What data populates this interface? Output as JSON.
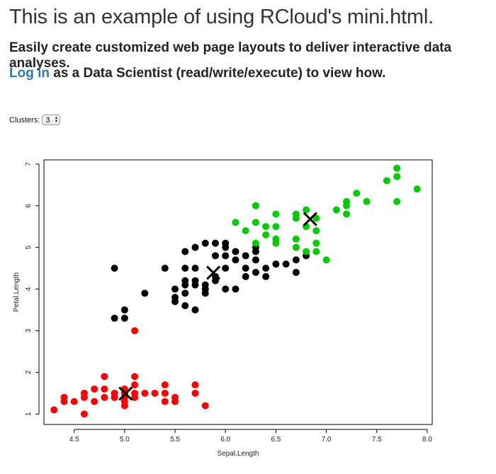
{
  "header": {
    "title": "This is an example of using RCloud's mini.html.",
    "subtitle": "Easily create customized web page layouts to deliver interactive data analyses.",
    "login_link": "Log in",
    "login_rest": " as a Data Scientist (read/write/execute) to view how."
  },
  "control": {
    "label": "Clusters:",
    "selected": "3"
  },
  "chart_data": {
    "type": "scatter",
    "xlabel": "Sepal.Length",
    "ylabel": "Petal.Length",
    "xlim": [
      4.2,
      8.05
    ],
    "ylim": [
      0.75,
      7.1
    ],
    "x_ticks": [
      "4.5",
      "5.0",
      "5.5",
      "6.0",
      "6.5",
      "7.0",
      "7.5",
      "8.0"
    ],
    "y_ticks": [
      "1",
      "2",
      "3",
      "4",
      "5",
      "6",
      "7"
    ],
    "colors": {
      "red": "#ff0000",
      "black": "#000000",
      "green": "#00cc00"
    },
    "series": [
      {
        "color": "#ff0000",
        "points": [
          [
            4.3,
            1.1
          ],
          [
            4.4,
            1.3
          ],
          [
            4.4,
            1.4
          ],
          [
            4.5,
            1.3
          ],
          [
            4.6,
            1.5
          ],
          [
            4.6,
            1.4
          ],
          [
            4.6,
            1.0
          ],
          [
            4.7,
            1.3
          ],
          [
            4.7,
            1.6
          ],
          [
            4.8,
            1.9
          ],
          [
            4.8,
            1.6
          ],
          [
            4.8,
            1.4
          ],
          [
            4.9,
            1.5
          ],
          [
            4.9,
            1.4
          ],
          [
            5.0,
            1.6
          ],
          [
            5.0,
            1.5
          ],
          [
            5.0,
            1.4
          ],
          [
            5.0,
            1.2
          ],
          [
            5.1,
            1.9
          ],
          [
            5.1,
            1.7
          ],
          [
            5.1,
            1.5
          ],
          [
            5.1,
            1.4
          ],
          [
            5.1,
            3.0
          ],
          [
            5.2,
            1.5
          ],
          [
            5.3,
            1.5
          ],
          [
            5.4,
            1.7
          ],
          [
            5.4,
            1.5
          ],
          [
            5.4,
            1.3
          ],
          [
            5.5,
            1.4
          ],
          [
            5.5,
            1.3
          ],
          [
            5.7,
            1.7
          ],
          [
            5.7,
            1.5
          ],
          [
            5.8,
            1.2
          ],
          [
            4.9,
            1.4
          ],
          [
            5.0,
            1.3
          ]
        ]
      },
      {
        "color": "#000000",
        "points": [
          [
            4.9,
            4.5
          ],
          [
            4.9,
            3.3
          ],
          [
            5.0,
            3.5
          ],
          [
            5.0,
            3.3
          ],
          [
            5.2,
            3.9
          ],
          [
            5.4,
            4.5
          ],
          [
            5.5,
            4.0
          ],
          [
            5.5,
            3.8
          ],
          [
            5.5,
            3.7
          ],
          [
            5.6,
            4.9
          ],
          [
            5.6,
            4.5
          ],
          [
            5.6,
            4.2
          ],
          [
            5.6,
            4.1
          ],
          [
            5.6,
            3.9
          ],
          [
            5.6,
            3.6
          ],
          [
            5.7,
            5.0
          ],
          [
            5.7,
            4.5
          ],
          [
            5.7,
            4.2
          ],
          [
            5.7,
            4.1
          ],
          [
            5.7,
            3.5
          ],
          [
            5.8,
            5.1
          ],
          [
            5.8,
            4.1
          ],
          [
            5.8,
            4.0
          ],
          [
            5.8,
            3.9
          ],
          [
            5.9,
            5.1
          ],
          [
            5.9,
            4.8
          ],
          [
            5.9,
            4.2
          ],
          [
            6.0,
            5.1
          ],
          [
            6.0,
            5.0
          ],
          [
            6.0,
            4.5
          ],
          [
            6.0,
            4.0
          ],
          [
            6.1,
            4.9
          ],
          [
            6.1,
            4.7
          ],
          [
            6.1,
            4.0
          ],
          [
            6.2,
            4.8
          ],
          [
            6.2,
            4.5
          ],
          [
            6.2,
            4.3
          ],
          [
            6.3,
            5.0
          ],
          [
            6.3,
            4.9
          ],
          [
            6.3,
            4.4
          ],
          [
            6.4,
            4.5
          ],
          [
            6.4,
            4.3
          ],
          [
            6.5,
            4.6
          ],
          [
            6.6,
            4.6
          ],
          [
            6.7,
            4.4
          ],
          [
            6.7,
            4.7
          ],
          [
            6.8,
            4.8
          ],
          [
            6.3,
            4.7
          ],
          [
            6.0,
            4.8
          ],
          [
            5.9,
            4.3
          ]
        ]
      },
      {
        "color": "#00cc00",
        "points": [
          [
            6.1,
            5.6
          ],
          [
            6.2,
            5.4
          ],
          [
            6.3,
            6.0
          ],
          [
            6.3,
            5.6
          ],
          [
            6.3,
            5.1
          ],
          [
            6.4,
            5.5
          ],
          [
            6.4,
            5.3
          ],
          [
            6.5,
            5.8
          ],
          [
            6.5,
            5.5
          ],
          [
            6.5,
            5.2
          ],
          [
            6.5,
            5.1
          ],
          [
            6.7,
            5.8
          ],
          [
            6.7,
            5.7
          ],
          [
            6.7,
            5.2
          ],
          [
            6.7,
            5.0
          ],
          [
            6.8,
            5.9
          ],
          [
            6.8,
            5.5
          ],
          [
            6.9,
            5.7
          ],
          [
            6.9,
            5.4
          ],
          [
            6.9,
            5.1
          ],
          [
            6.9,
            4.9
          ],
          [
            7.0,
            4.7
          ],
          [
            7.1,
            5.9
          ],
          [
            7.2,
            6.1
          ],
          [
            7.2,
            6.0
          ],
          [
            7.2,
            5.8
          ],
          [
            7.3,
            6.3
          ],
          [
            7.4,
            6.1
          ],
          [
            7.6,
            6.6
          ],
          [
            7.7,
            6.9
          ],
          [
            7.7,
            6.7
          ],
          [
            7.7,
            6.1
          ],
          [
            7.9,
            6.4
          ],
          [
            6.8,
            4.9
          ]
        ]
      }
    ],
    "centers": [
      [
        5.01,
        1.49
      ],
      [
        5.88,
        4.39
      ],
      [
        6.84,
        5.68
      ]
    ]
  }
}
